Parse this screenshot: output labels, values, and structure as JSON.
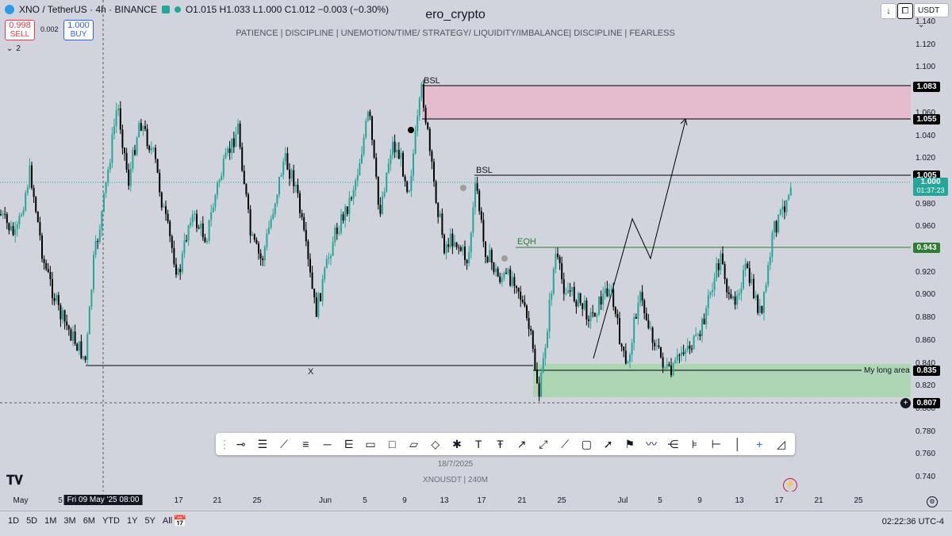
{
  "header": {
    "symbol": "XNO / TetherUS · 4h · BINANCE",
    "ohlc": "O1.015 H1.033 L1.000 C1.012 −0.003 (−0.30%)",
    "author": "ero_crypto",
    "tagline": "PATIENCE | DISCIPLINE | UNEMOTION/TIME/ STRATEGY/ LIQUIDITY/IMBALANCE| DISCIPLINE | FEARLESS",
    "sell_price": "0.998",
    "sell_label": "SELL",
    "spread": "0.002",
    "buy_price": "1.000",
    "buy_label": "BUY",
    "indicators_count": "2",
    "currency": "USDT"
  },
  "price_axis": {
    "ticks": [
      "1.140",
      "1.120",
      "1.100",
      "1.080",
      "1.060",
      "1.040",
      "1.020",
      "1.000",
      "0.980",
      "0.960",
      "0.940",
      "0.920",
      "0.900",
      "0.880",
      "0.860",
      "0.840",
      "0.820",
      "0.800",
      "0.780",
      "0.760",
      "0.740"
    ],
    "tags": {
      "bsl_top": "1.083",
      "zone_bottom": "1.055",
      "bsl_mid": "1.005",
      "current": "1.000",
      "countdown": "01:37:23",
      "eqh": "0.943",
      "long_area": "0.835",
      "crosshair": "0.807"
    }
  },
  "annotations": {
    "bsl1": "BSL",
    "bsl2": "BSL",
    "eqh": "EQH",
    "x_mark": "X",
    "long_area": "My long area",
    "watermark_date": "18/7/2025",
    "watermark_symbol": "XNOUSDT | 240M"
  },
  "time_axis": {
    "labels": [
      "May",
      "5",
      "Fri 09 May '25   08:00",
      "17",
      "21",
      "25",
      "Jun",
      "5",
      "9",
      "13",
      "17",
      "21",
      "25",
      "Jul",
      "5",
      "9",
      "13",
      "17",
      "21",
      "25"
    ]
  },
  "bottom_bar": {
    "ranges": [
      "1D",
      "5D",
      "1M",
      "3M",
      "6M",
      "YTD",
      "1Y",
      "5Y",
      "All"
    ],
    "clock": "02:22:36 UTC-4"
  },
  "colors": {
    "up": "#26a69a",
    "down": "#000000",
    "supply_zone": "#e8b4c8",
    "demand_zone": "#a8d5b0",
    "eqh": "#2e7d32",
    "accent": "#2962ff"
  }
}
